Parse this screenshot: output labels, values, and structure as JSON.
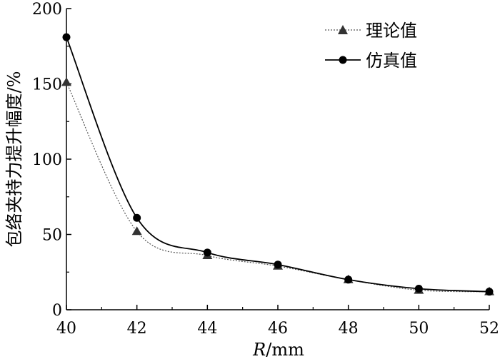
{
  "chart_data": {
    "type": "line",
    "title": "",
    "xlabel_italic": "R",
    "xlabel_rest": "/mm",
    "ylabel": "包络夹持力提升幅度/%",
    "xlim": [
      40,
      52
    ],
    "ylim": [
      0,
      200
    ],
    "x_ticks": [
      40,
      42,
      44,
      46,
      48,
      50,
      52
    ],
    "y_ticks": [
      0,
      50,
      100,
      150,
      200
    ],
    "grid": false,
    "legend_position": "top-right",
    "series": [
      {
        "name": "理论值",
        "marker": "triangle",
        "line_style": "dotted",
        "color": "#555555",
        "x": [
          40,
          42,
          44,
          46,
          48,
          50,
          52
        ],
        "y": [
          151,
          52,
          36,
          29,
          20,
          13,
          12
        ]
      },
      {
        "name": "仿真值",
        "marker": "circle",
        "line_style": "solid",
        "color": "#000000",
        "x": [
          40,
          42,
          44,
          46,
          48,
          50,
          52
        ],
        "y": [
          181,
          61,
          38,
          30,
          20,
          14,
          12
        ]
      }
    ]
  }
}
